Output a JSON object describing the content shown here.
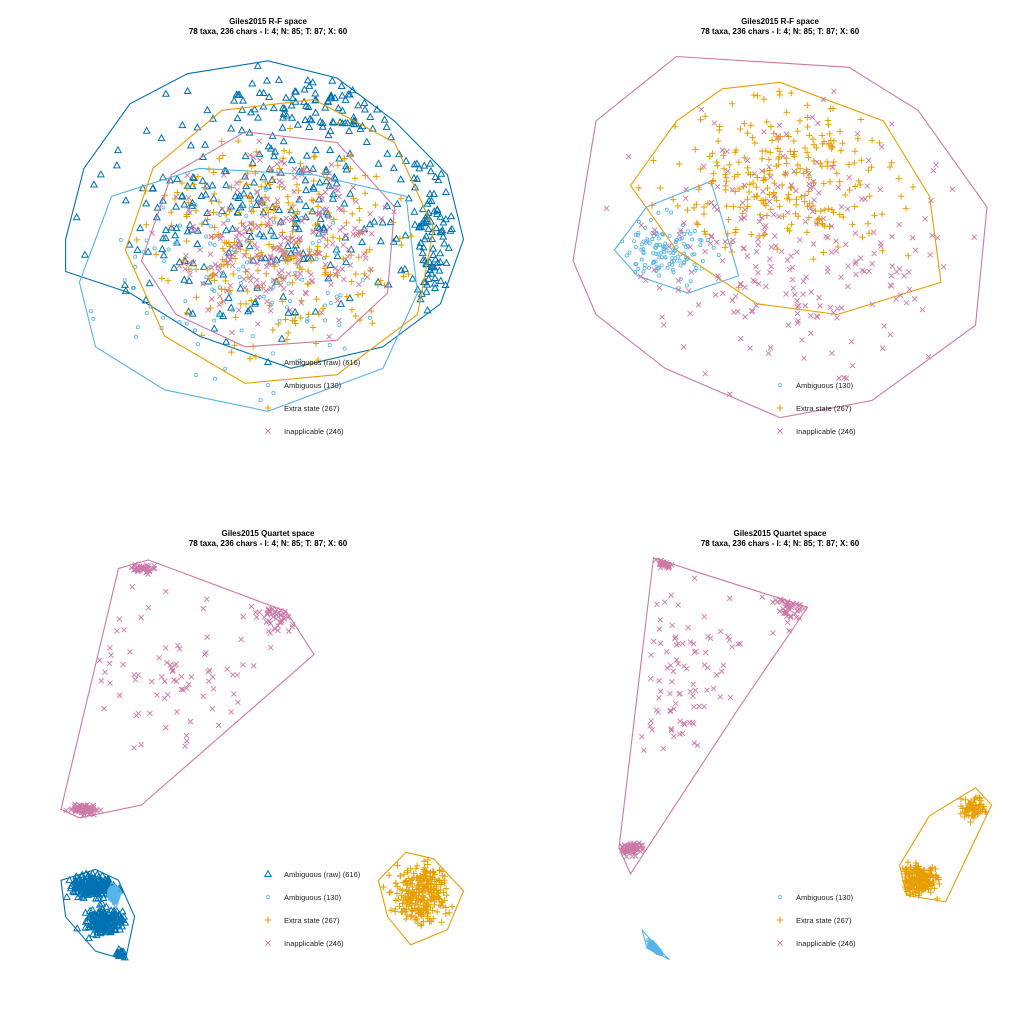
{
  "colors": {
    "ambiguous_raw": "#0072B2",
    "ambiguous": "#56B4E9",
    "extra_state": "#E69F00",
    "inapplicable": "#CC79A7"
  },
  "chart_data": [
    {
      "type": "scatter",
      "title": "Giles2015 R-F space",
      "subtitle": "78 taxa, 236 chars - I: 4; N: 85; T: 87; X: 60",
      "legend_position": "bottom-right",
      "grid": false,
      "axes_visible": false,
      "series": [
        {
          "name": "Ambiguous (raw) (616)",
          "marker": "triangle",
          "color_key": "ambiguous_raw",
          "hull": [
            [
              -0.88,
              0.05
            ],
            [
              -0.8,
              0.38
            ],
            [
              -0.6,
              0.68
            ],
            [
              -0.35,
              0.82
            ],
            [
              0.0,
              0.88
            ],
            [
              0.3,
              0.8
            ],
            [
              0.55,
              0.6
            ],
            [
              0.78,
              0.35
            ],
            [
              0.85,
              0.05
            ],
            [
              0.75,
              -0.25
            ],
            [
              0.5,
              -0.45
            ],
            [
              0.1,
              -0.55
            ],
            [
              -0.3,
              -0.4
            ],
            [
              -0.6,
              -0.2
            ],
            [
              -0.88,
              -0.1
            ]
          ],
          "clusters": [
            {
              "cx": 0.0,
              "cy": 0.2,
              "rx": 0.85,
              "ry": 0.6,
              "n": 260
            },
            {
              "cx": 0.7,
              "cy": 0.05,
              "rx": 0.14,
              "ry": 0.35,
              "n": 90
            },
            {
              "cx": 0.25,
              "cy": 0.65,
              "rx": 0.45,
              "ry": 0.18,
              "n": 80
            }
          ]
        },
        {
          "name": "Ambiguous (130)",
          "marker": "circle",
          "color_key": "ambiguous",
          "hull": [
            [
              -0.82,
              -0.15
            ],
            [
              -0.68,
              0.25
            ],
            [
              -0.3,
              0.38
            ],
            [
              0.2,
              0.35
            ],
            [
              0.6,
              0.25
            ],
            [
              0.65,
              -0.2
            ],
            [
              0.5,
              -0.55
            ],
            [
              0.0,
              -0.75
            ],
            [
              -0.45,
              -0.65
            ],
            [
              -0.75,
              -0.45
            ]
          ],
          "clusters": [
            {
              "cx": -0.1,
              "cy": -0.1,
              "rx": 0.65,
              "ry": 0.5,
              "n": 130
            }
          ]
        },
        {
          "name": "Extra state (267)",
          "marker": "plus",
          "color_key": "extra_state",
          "hull": [
            [
              -0.62,
              0.0
            ],
            [
              -0.5,
              0.38
            ],
            [
              -0.2,
              0.65
            ],
            [
              0.2,
              0.7
            ],
            [
              0.55,
              0.5
            ],
            [
              0.72,
              0.1
            ],
            [
              0.65,
              -0.3
            ],
            [
              0.3,
              -0.58
            ],
            [
              -0.1,
              -0.62
            ],
            [
              -0.45,
              -0.4
            ]
          ],
          "clusters": [
            {
              "cx": 0.0,
              "cy": 0.05,
              "rx": 0.58,
              "ry": 0.52,
              "n": 267
            }
          ]
        },
        {
          "name": "Inapplicable (246)",
          "marker": "x",
          "color_key": "inapplicable",
          "hull": [
            [
              -0.55,
              -0.05
            ],
            [
              -0.42,
              0.35
            ],
            [
              -0.1,
              0.55
            ],
            [
              0.3,
              0.5
            ],
            [
              0.55,
              0.2
            ],
            [
              0.52,
              -0.2
            ],
            [
              0.3,
              -0.42
            ],
            [
              -0.1,
              -0.45
            ],
            [
              -0.4,
              -0.3
            ]
          ],
          "clusters": [
            {
              "cx": 0.05,
              "cy": 0.05,
              "rx": 0.45,
              "ry": 0.4,
              "n": 246
            }
          ]
        }
      ]
    },
    {
      "type": "scatter",
      "title": "Giles2015 R-F space",
      "subtitle": "78 taxa, 236 chars - I: 4; N: 85; T: 87; X: 60",
      "legend_position": "bottom-right",
      "grid": false,
      "axes_visible": false,
      "series": [
        {
          "name": "Ambiguous (130)",
          "marker": "circle",
          "color_key": "ambiguous",
          "hull": [
            [
              -0.72,
              0.0
            ],
            [
              -0.58,
              0.2
            ],
            [
              -0.3,
              0.32
            ],
            [
              -0.18,
              -0.12
            ],
            [
              -0.4,
              -0.2
            ],
            [
              -0.62,
              -0.12
            ]
          ],
          "clusters": [
            {
              "cx": -0.5,
              "cy": 0.0,
              "rx": 0.16,
              "ry": 0.16,
              "n": 130
            }
          ]
        },
        {
          "name": "Extra state (267)",
          "marker": "plus",
          "color_key": "extra_state",
          "hull": [
            [
              -0.65,
              0.3
            ],
            [
              -0.45,
              0.6
            ],
            [
              -0.25,
              0.75
            ],
            [
              0.0,
              0.78
            ],
            [
              0.45,
              0.6
            ],
            [
              0.65,
              0.25
            ],
            [
              0.7,
              -0.15
            ],
            [
              0.25,
              -0.3
            ],
            [
              -0.1,
              -0.25
            ],
            [
              -0.45,
              0.0
            ]
          ],
          "clusters": [
            {
              "cx": 0.05,
              "cy": 0.35,
              "rx": 0.55,
              "ry": 0.35,
              "n": 267
            }
          ]
        },
        {
          "name": "Inapplicable (246)",
          "marker": "x",
          "color_key": "inapplicable",
          "hull": [
            [
              -0.9,
              -0.05
            ],
            [
              -0.8,
              0.6
            ],
            [
              -0.45,
              0.9
            ],
            [
              0.3,
              0.85
            ],
            [
              0.6,
              0.65
            ],
            [
              0.9,
              0.2
            ],
            [
              0.85,
              -0.35
            ],
            [
              0.4,
              -0.7
            ],
            [
              0.0,
              -0.78
            ],
            [
              -0.5,
              -0.55
            ],
            [
              -0.8,
              -0.3
            ]
          ],
          "clusters": [
            {
              "cx": 0.1,
              "cy": 0.0,
              "rx": 0.65,
              "ry": 0.55,
              "n": 246
            }
          ]
        }
      ]
    },
    {
      "type": "scatter",
      "title": "Giles2015 Quartet space",
      "subtitle": "78 taxa, 236 chars - I: 4; N: 85; T: 87; X: 60",
      "legend_position": "bottom-right",
      "grid": false,
      "axes_visible": false,
      "series": [
        {
          "name": "Ambiguous (raw) (616)",
          "marker": "triangle",
          "color_key": "ambiguous_raw",
          "hull": [
            [
              -0.9,
              -0.55
            ],
            [
              -0.75,
              -0.5
            ],
            [
              -0.65,
              -0.55
            ],
            [
              -0.58,
              -0.72
            ],
            [
              -0.62,
              -0.92
            ],
            [
              -0.75,
              -0.88
            ],
            [
              -0.88,
              -0.72
            ]
          ],
          "clusters": [
            {
              "cx": -0.76,
              "cy": -0.58,
              "rx": 0.1,
              "ry": 0.05,
              "n": 220
            },
            {
              "cx": -0.72,
              "cy": -0.74,
              "rx": 0.08,
              "ry": 0.06,
              "n": 180
            },
            {
              "cx": -0.64,
              "cy": -0.9,
              "rx": 0.02,
              "ry": 0.03,
              "n": 20
            }
          ]
        },
        {
          "name": "Ambiguous (130)",
          "marker": "circle",
          "color_key": "ambiguous",
          "hull": [
            [
              -0.68,
              -0.56
            ],
            [
              -0.64,
              -0.6
            ],
            [
              -0.66,
              -0.68
            ],
            [
              -0.7,
              -0.62
            ]
          ],
          "clusters": [
            {
              "cx": -0.67,
              "cy": -0.62,
              "rx": 0.025,
              "ry": 0.04,
              "n": 130
            }
          ]
        },
        {
          "name": "Extra state (267)",
          "marker": "plus",
          "color_key": "extra_state",
          "hull": [
            [
              0.48,
              -0.55
            ],
            [
              0.6,
              -0.42
            ],
            [
              0.72,
              -0.45
            ],
            [
              0.85,
              -0.6
            ],
            [
              0.78,
              -0.78
            ],
            [
              0.62,
              -0.85
            ],
            [
              0.52,
              -0.72
            ]
          ],
          "clusters": [
            {
              "cx": 0.66,
              "cy": -0.62,
              "rx": 0.12,
              "ry": 0.14,
              "n": 267
            }
          ]
        },
        {
          "name": "Inapplicable (246)",
          "marker": "x",
          "color_key": "inapplicable",
          "hull": [
            [
              -0.9,
              -0.22
            ],
            [
              -0.65,
              0.9
            ],
            [
              -0.52,
              0.94
            ],
            [
              0.08,
              0.7
            ],
            [
              0.2,
              0.5
            ],
            [
              -0.55,
              -0.2
            ],
            [
              -0.82,
              -0.26
            ]
          ],
          "clusters": [
            {
              "cx": -0.8,
              "cy": -0.22,
              "rx": 0.06,
              "ry": 0.02,
              "n": 80
            },
            {
              "cx": -0.4,
              "cy": 0.4,
              "rx": 0.35,
              "ry": 0.35,
              "n": 80
            },
            {
              "cx": -0.55,
              "cy": 0.9,
              "rx": 0.05,
              "ry": 0.02,
              "n": 40
            },
            {
              "cx": 0.05,
              "cy": 0.7,
              "rx": 0.1,
              "ry": 0.1,
              "n": 46
            }
          ]
        }
      ]
    },
    {
      "type": "scatter",
      "title": "Giles2015 Quartet space",
      "subtitle": "78 taxa, 236 chars - I: 4; N: 85; T: 87; X: 60",
      "legend_position": "bottom-right",
      "grid": false,
      "axes_visible": false,
      "series": [
        {
          "name": "Ambiguous (130)",
          "marker": "circle",
          "color_key": "ambiguous",
          "hull": [
            [
              -0.6,
              -0.78
            ],
            [
              -0.52,
              -0.88
            ],
            [
              -0.48,
              -0.92
            ],
            [
              -0.58,
              -0.86
            ]
          ],
          "clusters": [
            {
              "cx": -0.54,
              "cy": -0.86,
              "rx": 0.03,
              "ry": 0.04,
              "n": 130
            }
          ]
        },
        {
          "name": "Extra state (267)",
          "marker": "plus",
          "color_key": "extra_state",
          "hull": [
            [
              0.65,
              -0.25
            ],
            [
              0.85,
              -0.12
            ],
            [
              0.92,
              -0.2
            ],
            [
              0.72,
              -0.65
            ],
            [
              0.55,
              -0.62
            ],
            [
              0.52,
              -0.48
            ]
          ],
          "clusters": [
            {
              "cx": 0.6,
              "cy": -0.55,
              "rx": 0.08,
              "ry": 0.07,
              "n": 200
            },
            {
              "cx": 0.84,
              "cy": -0.22,
              "rx": 0.05,
              "ry": 0.05,
              "n": 67
            }
          ]
        },
        {
          "name": "Inapplicable (246)",
          "marker": "x",
          "color_key": "inapplicable",
          "hull": [
            [
              -0.7,
              -0.4
            ],
            [
              -0.55,
              0.95
            ],
            [
              -0.35,
              0.88
            ],
            [
              0.12,
              0.72
            ],
            [
              -0.18,
              0.25
            ],
            [
              -0.65,
              -0.52
            ]
          ],
          "clusters": [
            {
              "cx": -0.65,
              "cy": -0.4,
              "rx": 0.05,
              "ry": 0.03,
              "n": 80
            },
            {
              "cx": -0.4,
              "cy": 0.4,
              "rx": 0.25,
              "ry": 0.35,
              "n": 90
            },
            {
              "cx": -0.5,
              "cy": 0.92,
              "rx": 0.03,
              "ry": 0.02,
              "n": 30
            },
            {
              "cx": 0.05,
              "cy": 0.72,
              "rx": 0.08,
              "ry": 0.08,
              "n": 46
            }
          ]
        }
      ]
    }
  ]
}
